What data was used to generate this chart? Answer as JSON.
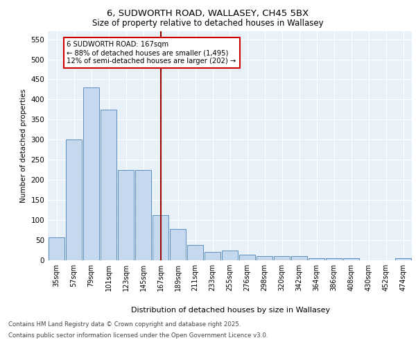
{
  "title1": "6, SUDWORTH ROAD, WALLASEY, CH45 5BX",
  "title2": "Size of property relative to detached houses in Wallasey",
  "xlabel": "Distribution of detached houses by size in Wallasey",
  "ylabel": "Number of detached properties",
  "categories": [
    "35sqm",
    "57sqm",
    "79sqm",
    "101sqm",
    "123sqm",
    "145sqm",
    "167sqm",
    "189sqm",
    "211sqm",
    "233sqm",
    "255sqm",
    "276sqm",
    "298sqm",
    "320sqm",
    "342sqm",
    "364sqm",
    "386sqm",
    "408sqm",
    "430sqm",
    "452sqm",
    "474sqm"
  ],
  "values": [
    57,
    300,
    430,
    375,
    225,
    225,
    113,
    77,
    38,
    20,
    25,
    13,
    10,
    10,
    10,
    6,
    5,
    5,
    0,
    0,
    5
  ],
  "bar_color": "#c5d8ed",
  "bar_edge_color": "#5a8fc0",
  "vline_x_idx": 6,
  "vline_color": "#990000",
  "annotation_text": "6 SUDWORTH ROAD: 167sqm\n← 88% of detached houses are smaller (1,495)\n12% of semi-detached houses are larger (202) →",
  "annotation_box_color": "#ffffff",
  "annotation_box_edge": "#cc0000",
  "ylim": [
    0,
    570
  ],
  "yticks": [
    0,
    50,
    100,
    150,
    200,
    250,
    300,
    350,
    400,
    450,
    500,
    550
  ],
  "plot_bg": "#e8f0f8",
  "footer1": "Contains HM Land Registry data © Crown copyright and database right 2025.",
  "footer2": "Contains public sector information licensed under the Open Government Licence v3.0."
}
